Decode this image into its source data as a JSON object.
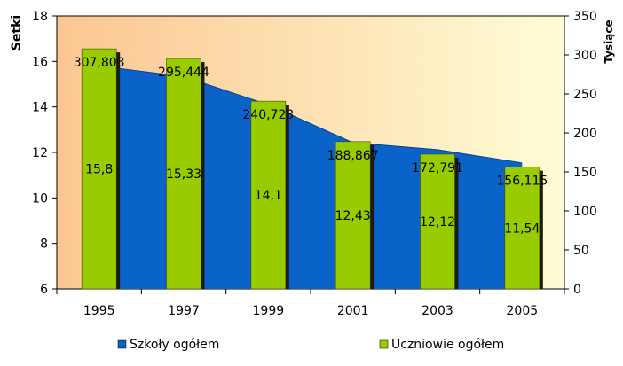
{
  "chart_data": {
    "type": "bar",
    "categories": [
      "1995",
      "1997",
      "1999",
      "2001",
      "2003",
      "2005"
    ],
    "left_axis": {
      "label": "Setki",
      "ylim": [
        6,
        18
      ],
      "ticks": [
        "6",
        "8",
        "10",
        "12",
        "14",
        "16",
        "18"
      ]
    },
    "right_axis": {
      "label": "Tysiące",
      "ylim": [
        0,
        350
      ],
      "ticks": [
        "0",
        "50",
        "100",
        "150",
        "200",
        "250",
        "300",
        "350"
      ]
    },
    "series": [
      {
        "name": "Szkoły ogółem",
        "type": "area",
        "axis": "left",
        "color": "#0a63c9",
        "values": [
          15.8,
          15.33,
          14.1,
          12.43,
          12.12,
          11.54
        ],
        "labels": [
          "15,8",
          "15,33",
          "14,1",
          "12,43",
          "12,12",
          "11,54"
        ]
      },
      {
        "name": "Uczniowie ogółem",
        "type": "bar",
        "axis": "right",
        "color": "#99cc00",
        "values": [
          307.803,
          295.444,
          240.723,
          188.867,
          172.791,
          156.115
        ],
        "labels": [
          "307,803",
          "295,444",
          "240,723",
          "188,867",
          "172,791",
          "156,115"
        ]
      }
    ],
    "plot_background": [
      "#fcc691",
      "#fffdd6"
    ],
    "grid": false,
    "legend_position": "bottom"
  }
}
